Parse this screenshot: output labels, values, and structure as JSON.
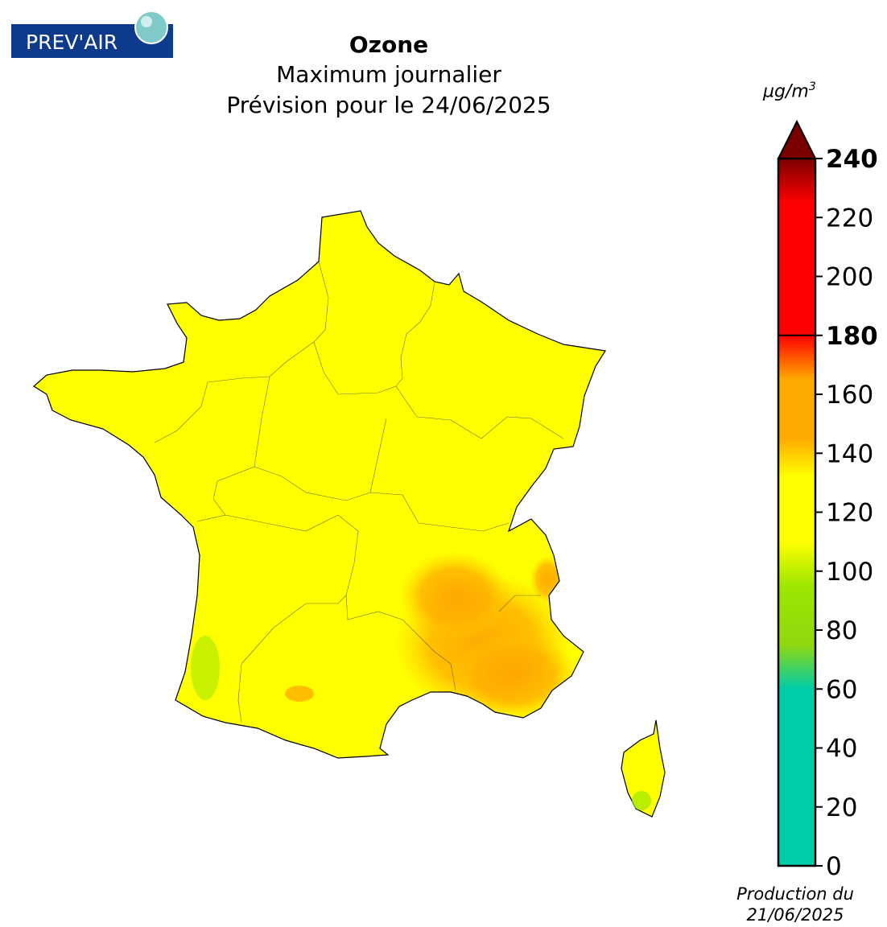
{
  "logo": {
    "text": "PREV'AIR",
    "colors": {
      "bar": "#0d3a8a",
      "text": "#ffffff",
      "globe": "#7fc9c9"
    }
  },
  "title": {
    "main": "Ozone",
    "line2": "Maximum journalier",
    "line3": "Prévision pour le 24/06/2025"
  },
  "colorbar": {
    "unit_base": "µg/m",
    "unit_exp": "3",
    "ticks": [
      0,
      20,
      40,
      60,
      80,
      100,
      120,
      140,
      160,
      180,
      200,
      220,
      240
    ],
    "bold_ticks": [
      180,
      240
    ],
    "range": [
      0,
      240
    ],
    "extend": "max",
    "stops": [
      {
        "value": 0,
        "color": "#00cca8"
      },
      {
        "value": 60,
        "color": "#00cca8"
      },
      {
        "value": 75,
        "color": "#8fd810"
      },
      {
        "value": 95,
        "color": "#9de600"
      },
      {
        "value": 110,
        "color": "#ffff00"
      },
      {
        "value": 132,
        "color": "#ffff00"
      },
      {
        "value": 145,
        "color": "#ffaa00"
      },
      {
        "value": 165,
        "color": "#ffaa00"
      },
      {
        "value": 180,
        "color": "#ff0000"
      },
      {
        "value": 225,
        "color": "#ff0000"
      },
      {
        "value": 240,
        "color": "#7a0000"
      }
    ],
    "extend_color": "#7a0000"
  },
  "map_colors": {
    "north": "#9de600",
    "south": "#ffff00",
    "southeast": "#ffaa00",
    "border": "#000000"
  },
  "production": {
    "line1": "Production du",
    "line2": "21/06/2025"
  }
}
